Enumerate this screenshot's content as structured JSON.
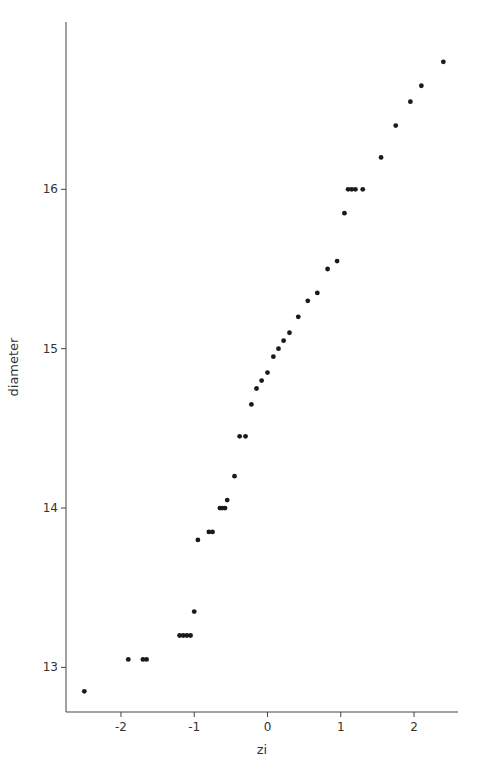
{
  "chart_data": {
    "type": "scatter",
    "x": [
      -2.5,
      -1.9,
      -1.7,
      -1.65,
      -1.2,
      -1.15,
      -1.1,
      -1.05,
      -1.0,
      -0.95,
      -0.8,
      -0.75,
      -0.65,
      -0.62,
      -0.58,
      -0.55,
      -0.45,
      -0.38,
      -0.3,
      -0.22,
      -0.15,
      -0.08,
      0.0,
      0.08,
      0.15,
      0.22,
      0.3,
      0.42,
      0.55,
      0.68,
      0.82,
      0.95,
      1.05,
      1.1,
      1.15,
      1.2,
      1.3,
      1.55,
      1.75,
      1.95,
      2.1,
      2.4
    ],
    "values": [
      12.85,
      13.05,
      13.05,
      13.05,
      13.2,
      13.2,
      13.2,
      13.2,
      13.35,
      13.8,
      13.85,
      13.85,
      14.0,
      14.0,
      14.0,
      14.05,
      14.2,
      14.45,
      14.45,
      14.65,
      14.75,
      14.8,
      14.85,
      14.95,
      15.0,
      15.05,
      15.1,
      15.2,
      15.3,
      15.35,
      15.5,
      15.55,
      15.85,
      16.0,
      16.0,
      16.0,
      16.0,
      16.2,
      16.4,
      16.55,
      16.65,
      16.8
    ],
    "xlabel": "zi",
    "ylabel": "diameter",
    "xlim": [
      -2.75,
      2.6
    ],
    "ylim": [
      12.72,
      17.05
    ],
    "xticks": [
      -2,
      -1,
      0,
      1,
      2
    ],
    "yticks": [
      13,
      14,
      15,
      16
    ],
    "color": "#1a1a1a"
  }
}
